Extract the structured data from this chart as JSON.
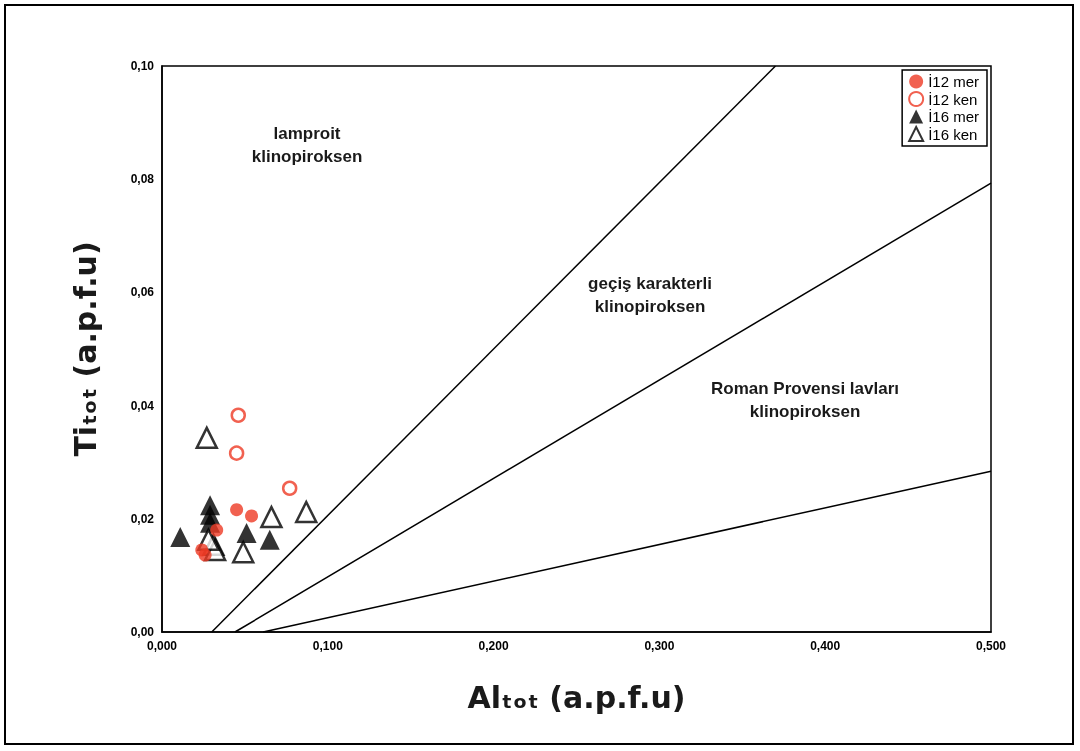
{
  "chart_data": {
    "type": "scatter",
    "xlabel": "Alₜₒₜ (a.p.f.u)",
    "ylabel": "Tiₜₒₜ (a.p.f.u)",
    "xlim": [
      0,
      0.5
    ],
    "ylim": [
      0,
      0.1
    ],
    "xticks": [
      {
        "value": 0,
        "label": "0,000"
      },
      {
        "value": 0.1,
        "label": "0,100"
      },
      {
        "value": 0.2,
        "label": "0,200"
      },
      {
        "value": 0.3,
        "label": "0,300"
      },
      {
        "value": 0.4,
        "label": "0,400"
      },
      {
        "value": 0.5,
        "label": "0,500"
      }
    ],
    "yticks": [
      {
        "value": 0,
        "label": "0,00"
      },
      {
        "value": 0.02,
        "label": "0,02"
      },
      {
        "value": 0.04,
        "label": "0,04"
      },
      {
        "value": 0.06,
        "label": "0,06"
      },
      {
        "value": 0.08,
        "label": "0,08"
      },
      {
        "value": 0.1,
        "label": "0,10"
      }
    ],
    "grid": false,
    "legend": "top right",
    "series": [
      {
        "name": "İ12 mer",
        "color": "#ee3a24",
        "marker": "circle",
        "x": [
          0.045,
          0.054,
          0.026,
          0.024,
          0.033
        ],
        "values": [
          0.0216,
          0.0205,
          0.0136,
          0.0145,
          0.018
        ]
      },
      {
        "name": "İ12 ken",
        "color": "#ee3a24",
        "marker": "circle-open",
        "x": [
          0.046,
          0.045,
          0.077
        ],
        "values": [
          0.0383,
          0.0316,
          0.0254
        ]
      },
      {
        "name": "İ16 mer",
        "color": "#000000",
        "marker": "triangle",
        "x": [
          0.011,
          0.029,
          0.029,
          0.029,
          0.051,
          0.065
        ],
        "values": [
          0.0168,
          0.0224,
          0.0207,
          0.0193,
          0.0175,
          0.0163
        ]
      },
      {
        "name": "İ16 ken",
        "color": "#000000",
        "marker": "triangle-open",
        "x": [
          0.027,
          0.066,
          0.087,
          0.049,
          0.031,
          0.032,
          0.028
        ],
        "values": [
          0.0343,
          0.0203,
          0.0212,
          0.0141,
          0.0154,
          0.0145,
          0.0163
        ]
      },
      {
        "type": "line",
        "color": "#000000",
        "marker": "none",
        "x": [
          0.03,
          0.37
        ],
        "values": [
          0,
          0.1
        ]
      },
      {
        "type": "line",
        "color": "#000000",
        "marker": "none",
        "x": [
          0.044,
          0.5
        ],
        "values": [
          0,
          0.0793
        ]
      },
      {
        "type": "line",
        "color": "#000000",
        "marker": "none",
        "x": [
          0.061,
          0.5
        ],
        "values": [
          0,
          0.0284
        ]
      }
    ],
    "annotations": [
      "lamproit\nklinopiroksen",
      "geçiş karakterli\nklinopiroksen",
      "Roman Provensi lavları\nklinopiroksen"
    ]
  }
}
